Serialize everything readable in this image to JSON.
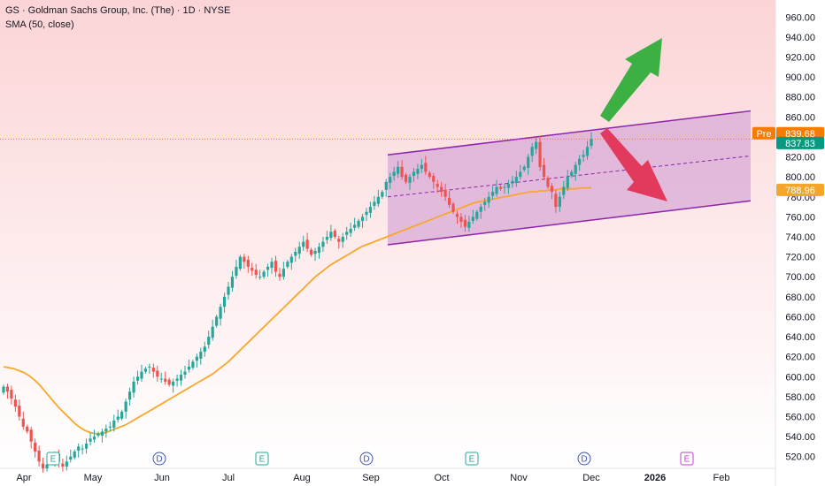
{
  "header": {
    "title": "GS · Goldman Sachs Group, Inc. (The) · 1D · NYSE",
    "indicator": "SMA (50, close)"
  },
  "colors": {
    "up": "#26a69a",
    "down": "#ef5350",
    "sma": "#f7a82a",
    "channel": "#8e24aa",
    "channel_fill": "#d6a7d6",
    "arrow_up": "#3cb043",
    "arrow_down": "#e23a5c",
    "price_badge": "#089981",
    "pre_badge": "#f57c00",
    "sma_badge": "#f4a62a",
    "bg_top": "#fbd4d6",
    "bg_bottom": "#ffffff"
  },
  "badges": {
    "pre_label": "Pre",
    "pre_value": "839.68",
    "last_value": "837.83",
    "sma_value": "788.96"
  },
  "chart_data": {
    "type": "candlestick",
    "title": "GS · Goldman Sachs Group, Inc. (The) · 1D · NYSE",
    "ylim": [
      510,
      970
    ],
    "y_ticks": [
      "960.00",
      "940.00",
      "920.00",
      "900.00",
      "880.00",
      "860.00",
      "840.00",
      "820.00",
      "800.00",
      "780.00",
      "760.00",
      "740.00",
      "720.00",
      "700.00",
      "680.00",
      "660.00",
      "640.00",
      "620.00",
      "600.00",
      "580.00",
      "560.00",
      "540.00",
      "520.00"
    ],
    "x_labels": [
      "Apr",
      "May",
      "Jun",
      "Jul",
      "Aug",
      "Sep",
      "Oct",
      "Nov",
      "Dec",
      "2026",
      "Feb"
    ],
    "events": [
      {
        "type": "E",
        "month": "Apr"
      },
      {
        "type": "D",
        "month": "May"
      },
      {
        "type": "E",
        "month": "Jul"
      },
      {
        "type": "D",
        "month": "Aug"
      },
      {
        "type": "E",
        "month": "Oct"
      },
      {
        "type": "D",
        "month": "Dec"
      },
      {
        "type": "E",
        "month": "Jan"
      }
    ],
    "close": [
      590,
      585,
      578,
      570,
      560,
      550,
      545,
      535,
      525,
      515,
      508,
      512,
      518,
      522,
      515,
      510,
      515,
      520,
      525,
      530,
      528,
      533,
      538,
      540,
      543,
      545,
      548,
      550,
      556,
      560,
      565,
      575,
      585,
      595,
      600,
      605,
      608,
      610,
      605,
      600,
      598,
      595,
      592,
      595,
      598,
      602,
      605,
      610,
      615,
      620,
      625,
      630,
      640,
      650,
      660,
      670,
      680,
      690,
      700,
      710,
      720,
      715,
      710,
      706,
      702,
      700,
      705,
      710,
      715,
      705,
      700,
      708,
      715,
      720,
      725,
      730,
      735,
      728,
      722,
      726,
      730,
      735,
      740,
      745,
      740,
      735,
      740,
      745,
      748,
      752,
      756,
      760,
      765,
      770,
      775,
      780,
      785,
      795,
      800,
      805,
      810,
      800,
      795,
      800,
      805,
      808,
      812,
      805,
      800,
      795,
      790,
      785,
      780,
      772,
      765,
      760,
      755,
      750,
      755,
      760,
      765,
      770,
      775,
      780,
      785,
      790,
      788,
      790,
      793,
      796,
      800,
      805,
      810,
      820,
      830,
      835,
      810,
      800,
      790,
      785,
      770,
      780,
      790,
      800,
      805,
      812,
      818,
      822,
      830,
      837.83
    ],
    "sma50": [
      610,
      609,
      608,
      606,
      604,
      601,
      597,
      592,
      586,
      580,
      574,
      568,
      563,
      558,
      553,
      549,
      546,
      544,
      543,
      543,
      544,
      546,
      548,
      550,
      552,
      555,
      558,
      561,
      564,
      567,
      570,
      573,
      576,
      579,
      582,
      585,
      588,
      591,
      594,
      597,
      600,
      603,
      607,
      611,
      615,
      620,
      625,
      630,
      635,
      640,
      645,
      650,
      655,
      660,
      665,
      670,
      675,
      680,
      685,
      690,
      695,
      700,
      704,
      708,
      712,
      715,
      718,
      721,
      724,
      727,
      730,
      732,
      734,
      736,
      738,
      740,
      742,
      744,
      746,
      748,
      750,
      752,
      754,
      756,
      758,
      760,
      762,
      764,
      766,
      768,
      770,
      772,
      774,
      775,
      776,
      777,
      778,
      779,
      780,
      781,
      782,
      783,
      784,
      785,
      785,
      786,
      786,
      787,
      787,
      788,
      788,
      788,
      788,
      789,
      789,
      788.96
    ],
    "channel": {
      "upper": {
        "from": 822,
        "to": 866
      },
      "lower": {
        "from": 732,
        "to": 776
      },
      "mid": {
        "from": 780,
        "to": 821
      }
    }
  }
}
